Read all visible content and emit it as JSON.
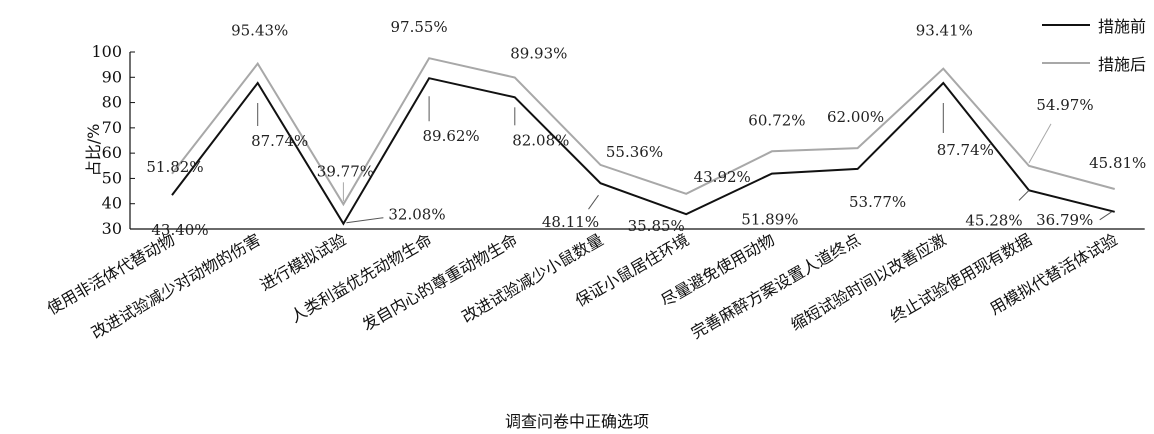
{
  "chart_data": {
    "type": "line",
    "title": "",
    "xlabel": "调查问卷中正确选项",
    "ylabel": "占比/%",
    "ylim": [
      30,
      100
    ],
    "yticks": [
      30,
      40,
      50,
      60,
      70,
      80,
      90,
      100
    ],
    "grid": false,
    "legend_position": "top-right",
    "categories": [
      "使用非活体代替动物",
      "改进试验减少对动物的伤害",
      "进行模拟试验",
      "人类利益优先动物生命",
      "发自内心的尊重动物生命",
      "改进试验减少小鼠数量",
      "保证小鼠居住环境",
      "尽量避免使用动物",
      "完善麻醉方案设置人道终点",
      "缩短试验时间以改善应激",
      "终止试验使用现有数据",
      "用模拟代替活体试验"
    ],
    "series": [
      {
        "name": "措施前",
        "color": "#111111",
        "values": [
          43.4,
          87.74,
          32.08,
          89.62,
          82.08,
          48.11,
          35.85,
          51.89,
          53.77,
          87.74,
          45.28,
          36.79
        ],
        "labels": [
          "43.40%",
          "87.74%",
          "32.08%",
          "89.62%",
          "82.08%",
          "48.11%",
          "35.85%",
          "51.89%",
          "53.77%",
          "87.74%",
          "45.28%",
          "36.79%"
        ]
      },
      {
        "name": "措施后",
        "color": "#a8a8a8",
        "values": [
          51.82,
          95.43,
          39.77,
          97.55,
          89.93,
          55.36,
          43.92,
          60.72,
          62.0,
          93.41,
          54.97,
          45.81
        ],
        "labels": [
          "51.82%",
          "95.43%",
          "39.77%",
          "97.55%",
          "89.93%",
          "55.36%",
          "43.92%",
          "60.72%",
          "62.00%",
          "93.41%",
          "54.97%",
          "45.81%"
        ]
      }
    ]
  }
}
